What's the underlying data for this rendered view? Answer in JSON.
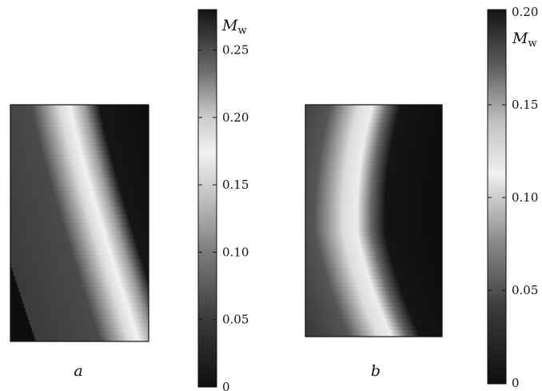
{
  "chart_data": [
    {
      "type": "heatmap",
      "panel_label": "a",
      "colorbar": {
        "label_main": "M",
        "label_sub": "w",
        "range": [
          0,
          0.28
        ],
        "ticks": [
          "0",
          "0.05",
          "0.10",
          "0.15",
          "0.20",
          "0.25"
        ],
        "tick_values": [
          0,
          0.05,
          0.1,
          0.15,
          0.2,
          0.25
        ]
      },
      "field": {
        "description_of_values": "bright ridge near M=0.20 running from top to bottom, curving right; dark (≈0.03) on left, ≈0.0 on right",
        "ridge_x_top": 0.35,
        "ridge_x_bottom": 0.85,
        "ridge_value": 0.2,
        "left_value": 0.035,
        "right_value": 0.0
      }
    },
    {
      "type": "heatmap",
      "panel_label": "b",
      "colorbar": {
        "label_main": "M",
        "label_sub": "w",
        "range": [
          0,
          0.2
        ],
        "ticks": [
          "0",
          "0.05",
          "0.10",
          "0.15",
          "0.20"
        ],
        "tick_values": [
          0,
          0.05,
          0.1,
          0.15,
          0.2
        ]
      },
      "field": {
        "description_of_values": "bright curved band near M=0.12 bowing left in the middle; dark inner region on left, ≈0 on right",
        "ridge_x_top": 0.2,
        "ridge_x_mid": 0.3,
        "ridge_x_bottom": 0.48,
        "ridge_value": 0.12,
        "left_value": 0.03,
        "right_value": 0.0
      }
    }
  ]
}
